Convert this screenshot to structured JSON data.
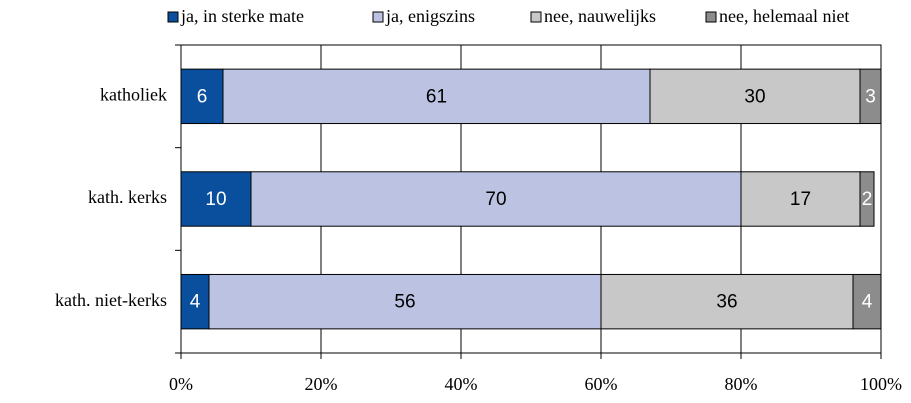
{
  "chart_data": {
    "type": "stacked-bar-horizontal",
    "categories": [
      "katholiek",
      "kath. kerks",
      "kath. niet-kerks"
    ],
    "series": [
      {
        "name": "ja, in sterke mate",
        "color": "#0a4f9e",
        "values": [
          6,
          10,
          4
        ]
      },
      {
        "name": "ja, enigszins",
        "color": "#bcc3e2",
        "values": [
          61,
          70,
          56
        ]
      },
      {
        "name": "nee, nauwelijks",
        "color": "#c8c8c8",
        "values": [
          30,
          17,
          36
        ]
      },
      {
        "name": "nee, helemaal niet",
        "color": "#8c8c8c",
        "values": [
          3,
          2,
          4
        ]
      }
    ],
    "xlim": [
      0,
      100
    ],
    "xticks": [
      {
        "value": 0,
        "label": "0%"
      },
      {
        "value": 20,
        "label": "20%"
      },
      {
        "value": 40,
        "label": "40%"
      },
      {
        "value": 60,
        "label": "60%"
      },
      {
        "value": 80,
        "label": "80%"
      },
      {
        "value": 100,
        "label": "100%"
      }
    ],
    "grid": true,
    "legend": "top"
  }
}
